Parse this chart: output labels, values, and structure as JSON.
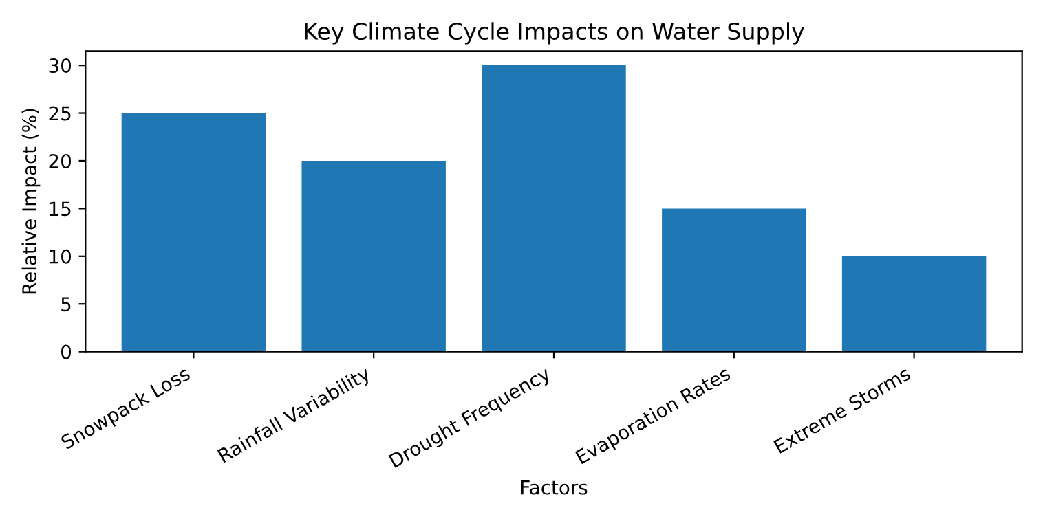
{
  "chart_data": {
    "type": "bar",
    "title": "Key Climate Cycle Impacts on Water Supply",
    "xlabel": "Factors",
    "ylabel": "Relative Impact (%)",
    "categories": [
      "Snowpack Loss",
      "Rainfall Variability",
      "Drought Frequency",
      "Evaporation Rates",
      "Extreme Storms"
    ],
    "values": [
      25,
      20,
      30,
      15,
      10
    ],
    "color": "#1f77b4",
    "ylim": [
      0,
      31.5
    ],
    "yticks": [
      0,
      5,
      10,
      15,
      20,
      25,
      30
    ],
    "grid": false
  }
}
